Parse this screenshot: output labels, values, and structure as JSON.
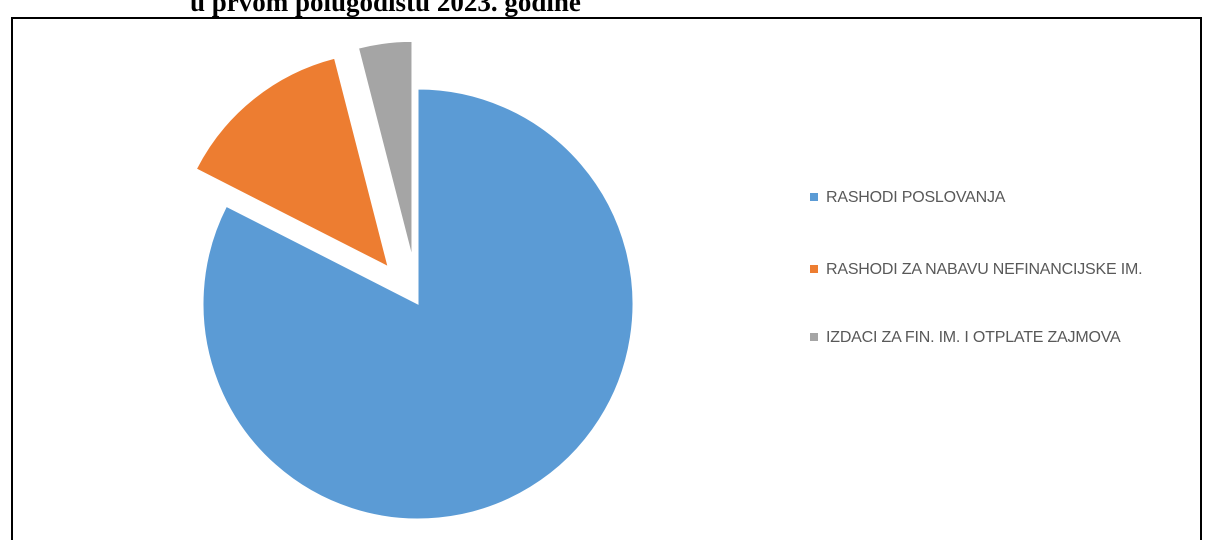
{
  "document": {
    "title": "u prvom polugodištu 2023. godine"
  },
  "chart_data": {
    "type": "pie",
    "title": "",
    "exploded": true,
    "legend_position": "right",
    "series": [
      {
        "name": "",
        "labels": [
          "RASHODI POSLOVANJA",
          "RASHODI ZA NABAVU NEFINANCIJSKE IM.",
          "IZDACI ZA FIN. IM. I OTPLATE ZAJMOVA"
        ],
        "values": [
          82.5,
          13.5,
          4.0
        ],
        "colors": [
          "#5B9BD5",
          "#ED7D31",
          "#A5A5A5"
        ]
      }
    ]
  }
}
